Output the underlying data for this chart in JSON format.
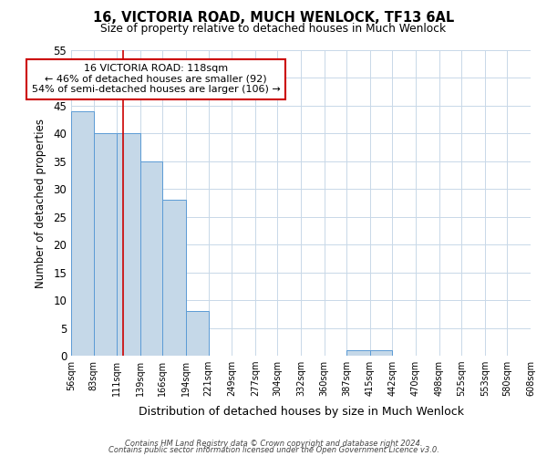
{
  "title": "16, VICTORIA ROAD, MUCH WENLOCK, TF13 6AL",
  "subtitle": "Size of property relative to detached houses in Much Wenlock",
  "xlabel": "Distribution of detached houses by size in Much Wenlock",
  "ylabel": "Number of detached properties",
  "bar_edges": [
    56,
    83,
    111,
    139,
    166,
    194,
    221,
    249,
    277,
    304,
    332,
    360,
    387,
    415,
    442,
    470,
    498,
    525,
    553,
    580,
    608
  ],
  "bar_heights": [
    44,
    40,
    40,
    35,
    28,
    8,
    0,
    0,
    0,
    0,
    0,
    0,
    1,
    1,
    0,
    0,
    0,
    0,
    0,
    0
  ],
  "bar_color": "#c5d8e8",
  "bar_edge_color": "#5b9bd5",
  "vline_x": 118,
  "vline_color": "#cc0000",
  "annotation_line0": "16 VICTORIA ROAD: 118sqm",
  "annotation_line1": "← 46% of detached houses are smaller (92)",
  "annotation_line2": "54% of semi-detached houses are larger (106) →",
  "annotation_box_edgecolor": "#cc0000",
  "ylim": [
    0,
    55
  ],
  "yticks": [
    0,
    5,
    10,
    15,
    20,
    25,
    30,
    35,
    40,
    45,
    50,
    55
  ],
  "tick_labels": [
    "56sqm",
    "83sqm",
    "111sqm",
    "139sqm",
    "166sqm",
    "194sqm",
    "221sqm",
    "249sqm",
    "277sqm",
    "304sqm",
    "332sqm",
    "360sqm",
    "387sqm",
    "415sqm",
    "442sqm",
    "470sqm",
    "498sqm",
    "525sqm",
    "553sqm",
    "580sqm",
    "608sqm"
  ],
  "footnote1": "Contains HM Land Registry data © Crown copyright and database right 2024.",
  "footnote2": "Contains public sector information licensed under the Open Government Licence v3.0.",
  "background_color": "#ffffff",
  "grid_color": "#c8d8e8"
}
